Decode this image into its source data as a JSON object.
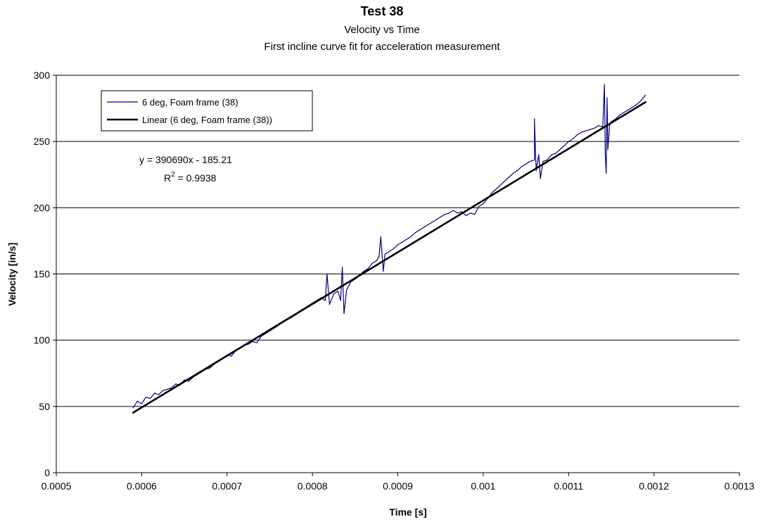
{
  "chart_data": {
    "type": "line",
    "title": "Test 38",
    "subtitle_1": "Velocity vs Time",
    "subtitle_2": "First incline curve fit for acceleration measurement",
    "xlabel": "Time [s]",
    "ylabel": "Velocity [in/s]",
    "xlim": [
      0.0005,
      0.0013
    ],
    "ylim": [
      0,
      300
    ],
    "x_ticks": [
      0.0005,
      0.0006,
      0.0007,
      0.0008,
      0.0009,
      0.001,
      0.0011,
      0.0012,
      0.0013
    ],
    "x_tick_labels": [
      "0.0005",
      "0.0006",
      "0.0007",
      "0.0008",
      "0.0009",
      "0.001",
      "0.0011",
      "0.0012",
      "0.0013"
    ],
    "y_ticks": [
      0,
      50,
      100,
      150,
      200,
      250,
      300
    ],
    "y_tick_labels": [
      "0",
      "50",
      "100",
      "150",
      "200",
      "250",
      "300"
    ],
    "grid": "horizontal",
    "legend_position": "top-left",
    "series": [
      {
        "name": "6 deg, Foam frame (38)",
        "color": "#000080",
        "x": [
          0.00059,
          0.000595,
          0.0006,
          0.000605,
          0.00061,
          0.000615,
          0.00062,
          0.000625,
          0.00063,
          0.000635,
          0.00064,
          0.000645,
          0.00065,
          0.000655,
          0.00066,
          0.000665,
          0.00067,
          0.000675,
          0.00068,
          0.000685,
          0.00069,
          0.000695,
          0.0007,
          0.000705,
          0.00071,
          0.000715,
          0.00072,
          0.000725,
          0.00073,
          0.000735,
          0.00074,
          0.000745,
          0.00075,
          0.000755,
          0.00076,
          0.000765,
          0.00077,
          0.000775,
          0.00078,
          0.000785,
          0.00079,
          0.000795,
          0.0008,
          0.000805,
          0.00081,
          0.000815,
          0.000817,
          0.00082,
          0.000825,
          0.00083,
          0.000833,
          0.000835,
          0.000837,
          0.00084,
          0.000845,
          0.00085,
          0.000855,
          0.00086,
          0.000865,
          0.00087,
          0.000875,
          0.000878,
          0.00088,
          0.000883,
          0.000885,
          0.00089,
          0.000895,
          0.0009,
          0.000905,
          0.00091,
          0.000915,
          0.00092,
          0.000925,
          0.00093,
          0.000935,
          0.00094,
          0.000945,
          0.00095,
          0.000955,
          0.00096,
          0.000965,
          0.00097,
          0.000975,
          0.00098,
          0.000985,
          0.00099,
          0.000995,
          0.001,
          0.001005,
          0.00101,
          0.001015,
          0.00102,
          0.001025,
          0.00103,
          0.001035,
          0.00104,
          0.001045,
          0.00105,
          0.001055,
          0.00106,
          0.00106,
          0.001062,
          0.001065,
          0.001067,
          0.00107,
          0.001075,
          0.00108,
          0.001085,
          0.00109,
          0.001095,
          0.0011,
          0.001105,
          0.00111,
          0.001115,
          0.00112,
          0.001125,
          0.00113,
          0.001135,
          0.00114,
          0.001142,
          0.001143,
          0.001144,
          0.001145,
          0.001146,
          0.001148,
          0.00115,
          0.001155,
          0.00116,
          0.001165,
          0.00117,
          0.001175,
          0.00118,
          0.001185,
          0.00119
        ],
        "y": [
          49,
          54,
          52,
          57,
          56,
          60,
          59,
          62,
          63,
          64,
          67,
          66,
          70,
          69,
          72,
          74,
          76,
          78,
          79,
          82,
          84,
          86,
          89,
          88,
          92,
          94,
          96,
          97,
          99,
          98,
          103,
          105,
          107,
          109,
          111,
          114,
          116,
          117,
          119,
          122,
          124,
          126,
          128,
          130,
          132,
          130,
          150,
          127,
          135,
          137,
          130,
          155,
          120,
          138,
          144,
          146,
          149,
          152,
          154,
          158,
          160,
          163,
          178,
          152,
          165,
          167,
          169,
          172,
          174,
          176,
          178,
          181,
          183,
          185,
          187,
          189,
          191,
          193,
          195,
          196,
          198,
          196,
          197,
          194,
          196,
          195,
          201,
          203,
          207,
          211,
          214,
          217,
          220,
          223,
          226,
          228,
          231,
          233,
          235,
          236,
          267,
          228,
          240,
          222,
          235,
          236,
          240,
          241,
          244,
          247,
          250,
          252,
          255,
          257,
          258,
          259,
          260,
          262,
          261,
          293,
          240,
          226,
          283,
          244,
          262,
          265,
          267,
          270,
          272,
          274,
          276,
          278,
          281,
          285
        ]
      },
      {
        "name": "Linear (6 deg, Foam frame (38))",
        "color": "#000000",
        "x": [
          0.00059,
          0.00119
        ],
        "y": [
          45.3,
          279.7
        ]
      }
    ],
    "annotations": {
      "equation": "y = 390690x - 185.21",
      "r_squared_prefix": "R",
      "r_squared_sup": "2",
      "r_squared_value": " = 0.9938"
    }
  }
}
